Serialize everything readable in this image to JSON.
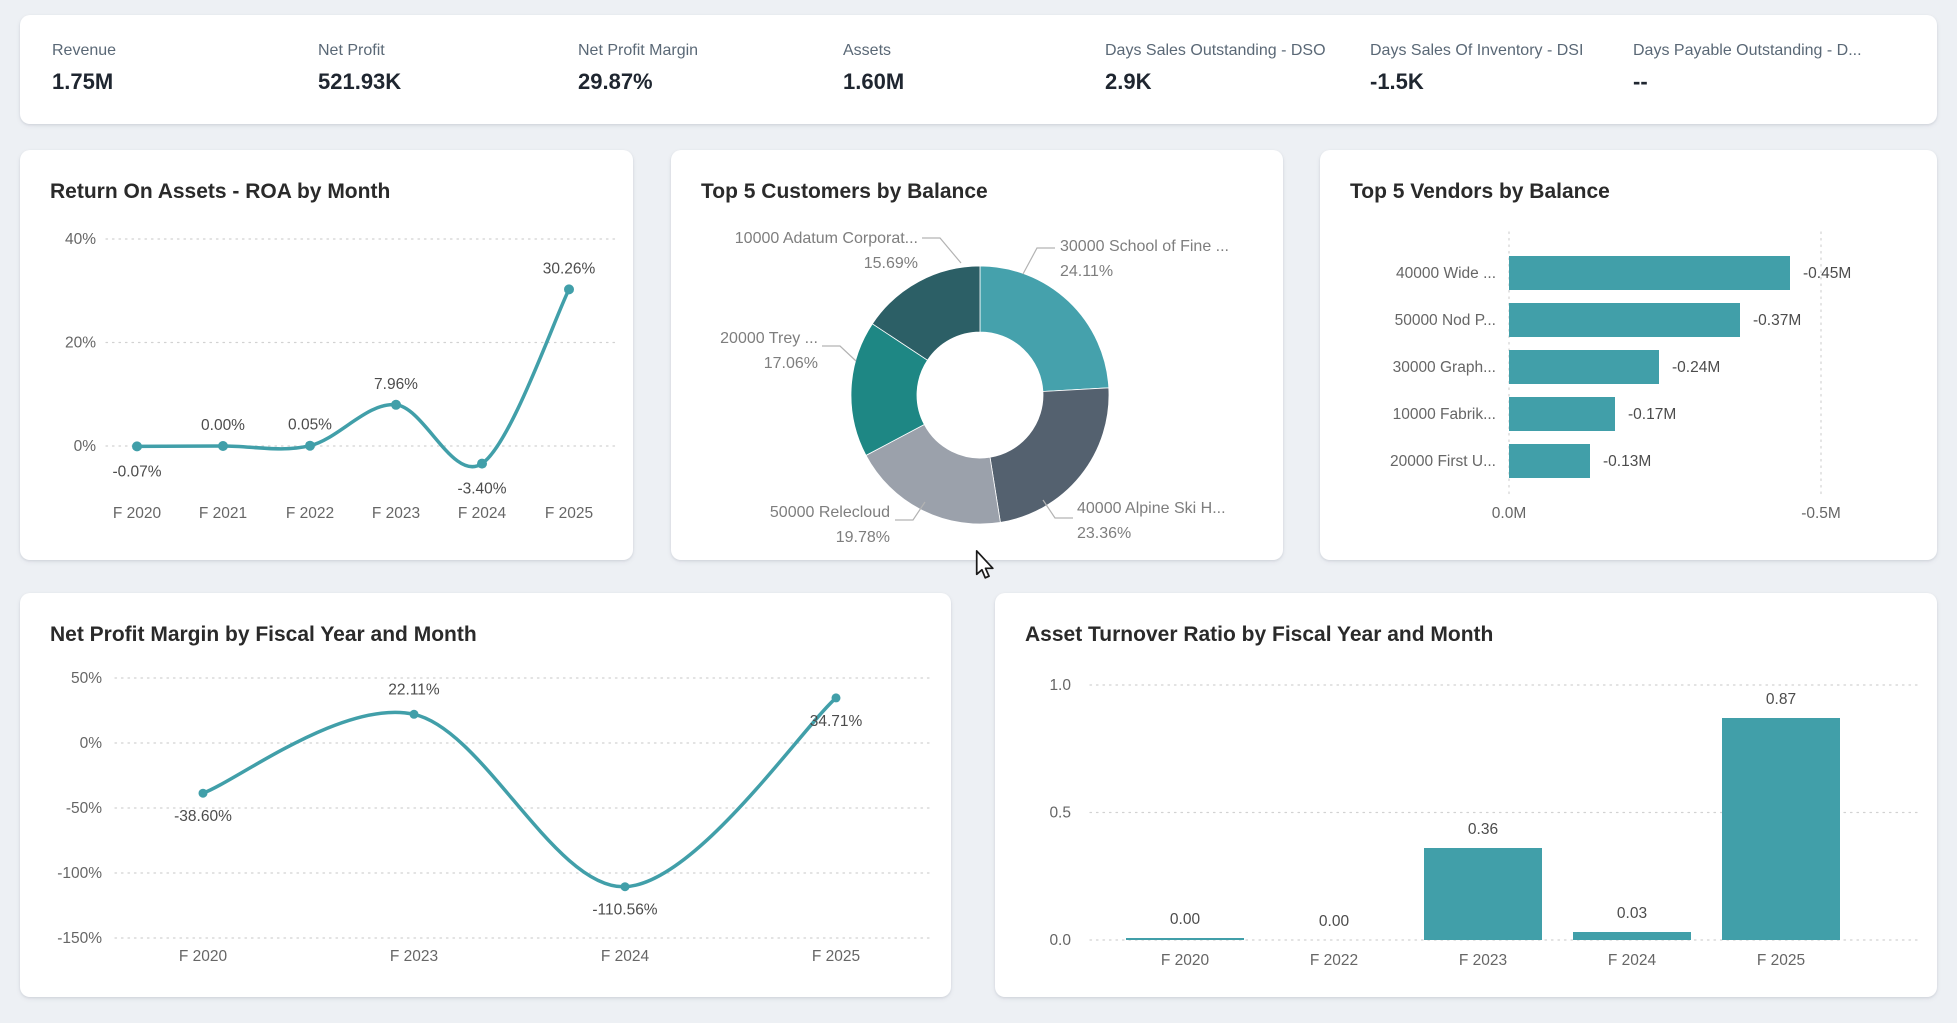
{
  "kpis": [
    {
      "label": "Revenue",
      "value": "1.75M"
    },
    {
      "label": "Net Profit",
      "value": "521.93K"
    },
    {
      "label": "Net Profit Margin",
      "value": "29.87%"
    },
    {
      "label": "Assets",
      "value": "1.60M"
    },
    {
      "label": "Days Sales Outstanding - DSO",
      "value": "2.9K"
    },
    {
      "label": "Days Sales Of Inventory - DSI",
      "value": "-1.5K"
    },
    {
      "label": "Days Payable Outstanding - D...",
      "value": "--"
    }
  ],
  "colors": {
    "accent_teal": "#419fa9",
    "page_bg": "#edf0f4",
    "card_bg": "#ffffff",
    "kpi_label": "#5a6876",
    "kpi_value": "#1f2630",
    "title": "#2a2a2a",
    "tick_text": "#666666",
    "data_label": "#4c4c4c",
    "donut_label_text": "#7e7e7e",
    "gridline": "#d2d2d2",
    "leader_line": "#b3b3b3"
  },
  "chart_data": [
    {
      "id": "roa",
      "type": "line",
      "title": "Return On Assets - ROA by Month",
      "categories": [
        "F 2020",
        "F 2021",
        "F 2022",
        "F 2023",
        "F 2024",
        "F 2025"
      ],
      "values": [
        -0.07,
        0.0,
        0.05,
        7.96,
        -3.4,
        30.26
      ],
      "labels": [
        "-0.07%",
        "0.00%",
        "0.05%",
        "7.96%",
        "-3.40%",
        "30.26%"
      ],
      "label_side": [
        "below",
        "above",
        "above",
        "above",
        "below",
        "above"
      ],
      "yticks": [
        {
          "v": 40,
          "label": "40%"
        },
        {
          "v": 20,
          "label": "20%"
        },
        {
          "v": 0,
          "label": "0%"
        }
      ],
      "ylim": [
        -10,
        40
      ],
      "grid": "dotted",
      "legend": "none"
    },
    {
      "id": "customers",
      "type": "pie",
      "title": "Top 5 Customers by Balance",
      "slices": [
        {
          "name": "30000 School of Fine ...",
          "pct": 24.11,
          "pct_label": "24.11%",
          "color": "#45a1ac"
        },
        {
          "name": "40000 Alpine Ski H...",
          "pct": 23.36,
          "pct_label": "23.36%",
          "color": "#54616f"
        },
        {
          "name": "50000 Relecloud",
          "pct": 19.78,
          "pct_label": "19.78%",
          "color": "#9ba1ab"
        },
        {
          "name": "20000 Trey ...",
          "pct": 17.06,
          "pct_label": "17.06%",
          "color": "#1e8784"
        },
        {
          "name": "10000 Adatum Corporat...",
          "pct": 15.69,
          "pct_label": "15.69%",
          "color": "#2c5f66"
        }
      ],
      "donut": true,
      "legend": "callout-labels"
    },
    {
      "id": "vendors",
      "type": "bar",
      "orientation": "horizontal",
      "title": "Top 5 Vendors by Balance",
      "categories": [
        "40000 Wide ...",
        "50000 Nod P...",
        "30000 Graph...",
        "10000 Fabrik...",
        "20000 First U..."
      ],
      "values": [
        -0.45,
        -0.37,
        -0.24,
        -0.17,
        -0.13
      ],
      "labels": [
        "-0.45M",
        "-0.37M",
        "-0.24M",
        "-0.17M",
        "-0.13M"
      ],
      "xticks": [
        {
          "v": 0,
          "label": "0.0M"
        },
        {
          "v": -0.5,
          "label": "-0.5M"
        }
      ],
      "xlim": [
        0,
        -0.5
      ],
      "grid": "dotted",
      "legend": "none"
    },
    {
      "id": "npm",
      "type": "line",
      "title": "Net Profit Margin by Fiscal Year and Month",
      "categories": [
        "F 2020",
        "F 2023",
        "F 2024",
        "F 2025"
      ],
      "values": [
        -38.6,
        22.11,
        -110.56,
        34.71
      ],
      "labels": [
        "-38.60%",
        "22.11%",
        "-110.56%",
        "34.71%"
      ],
      "label_side": [
        "below",
        "above",
        "below",
        "below"
      ],
      "yticks": [
        {
          "v": 50,
          "label": "50%"
        },
        {
          "v": 0,
          "label": "0%"
        },
        {
          "v": -50,
          "label": "-50%"
        },
        {
          "v": -100,
          "label": "-100%"
        },
        {
          "v": -150,
          "label": "-150%"
        }
      ],
      "ylim": [
        -150,
        50
      ],
      "grid": "dotted",
      "legend": "none"
    },
    {
      "id": "atr",
      "type": "bar",
      "orientation": "vertical",
      "title": "Asset Turnover Ratio by Fiscal Year and Month",
      "categories": [
        "F 2020",
        "F 2022",
        "F 2023",
        "F 2024",
        "F 2025"
      ],
      "values": [
        0.0,
        0.0,
        0.36,
        0.03,
        0.87
      ],
      "labels": [
        "0.00",
        "0.00",
        "0.36",
        "0.03",
        "0.87"
      ],
      "sliver_indexes": [
        0
      ],
      "yticks": [
        {
          "v": 1.0,
          "label": "1.0"
        },
        {
          "v": 0.5,
          "label": "0.5"
        },
        {
          "v": 0.0,
          "label": "0.0"
        }
      ],
      "ylim": [
        0,
        1.0
      ],
      "grid": "dotted",
      "legend": "none"
    }
  ]
}
